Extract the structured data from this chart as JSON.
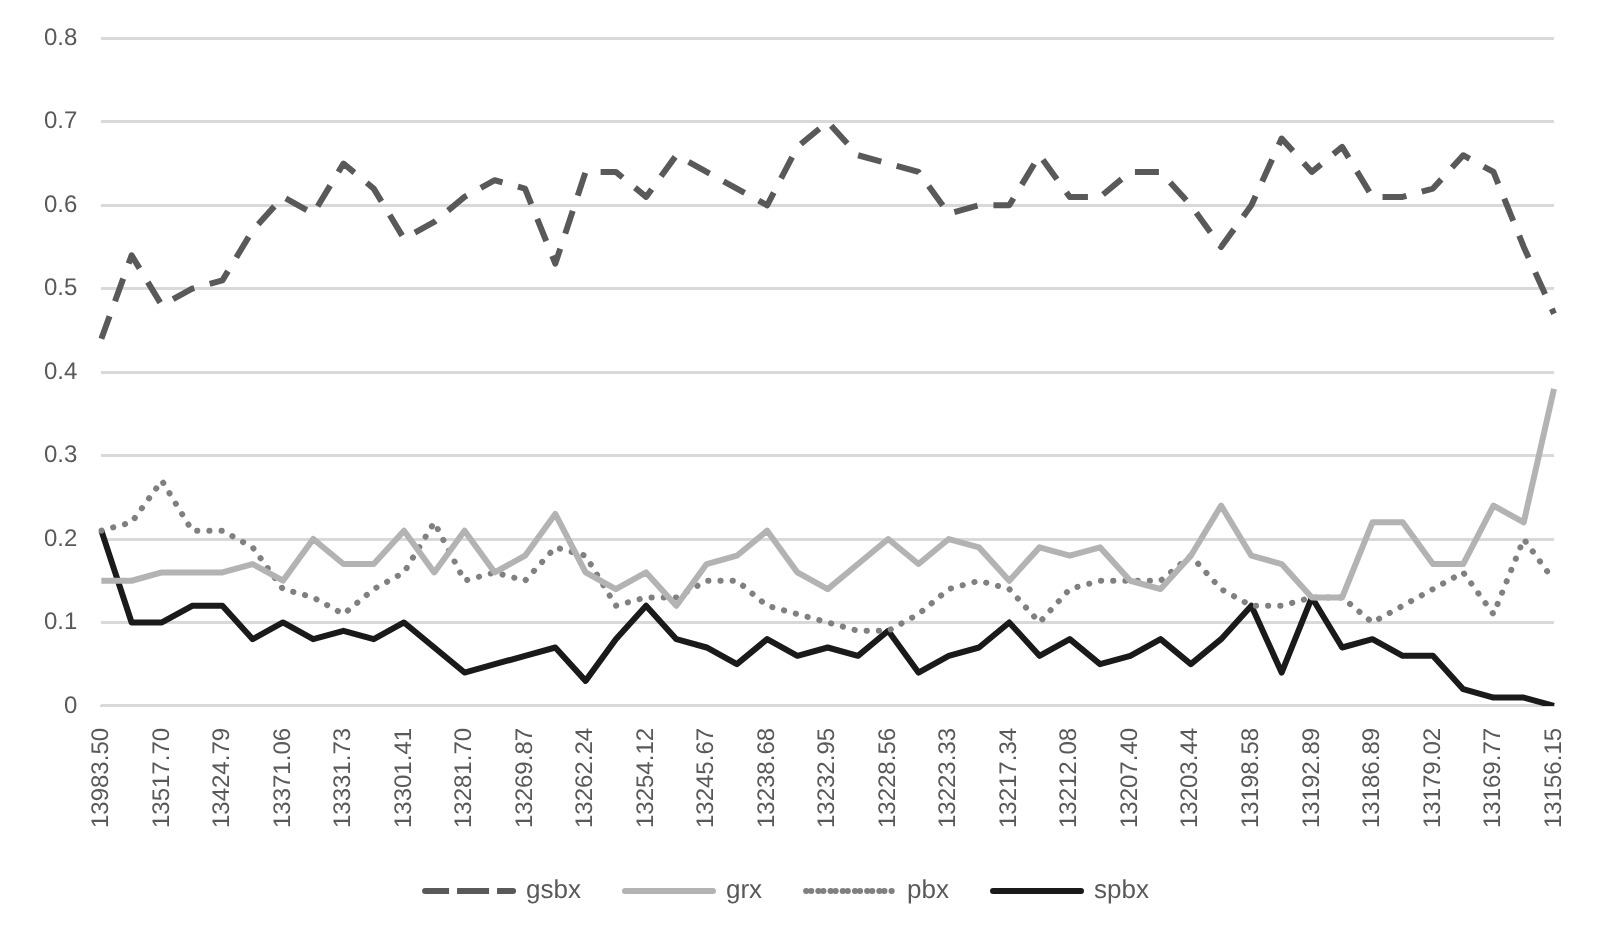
{
  "chart_data": {
    "type": "line",
    "categories": [
      "13983.50",
      null,
      "13517.70",
      null,
      "13424.79",
      null,
      "13371.06",
      null,
      "13331.73",
      null,
      "13301.41",
      null,
      "13281.70",
      null,
      "13269.87",
      null,
      "13262.24",
      null,
      "13254.12",
      null,
      "13245.67",
      null,
      "13238.68",
      null,
      "13232.95",
      null,
      "13228.56",
      null,
      "13223.33",
      null,
      "13217.34",
      null,
      "13212.08",
      null,
      "13207.40",
      null,
      "13203.44",
      null,
      "13198.58",
      null,
      "13192.89",
      null,
      "13186.89",
      null,
      "13179.02",
      null,
      "13169.77",
      null,
      "13156.15"
    ],
    "series": [
      {
        "name": "gsbx",
        "color": "#595959",
        "line_style": "dashed",
        "values": [
          0.44,
          0.54,
          0.48,
          0.5,
          0.51,
          0.57,
          0.61,
          0.59,
          0.65,
          0.62,
          0.56,
          0.58,
          0.61,
          0.63,
          0.62,
          0.53,
          0.64,
          0.64,
          0.61,
          0.66,
          0.64,
          0.62,
          0.6,
          0.67,
          0.7,
          0.66,
          0.65,
          0.64,
          0.59,
          0.6,
          0.6,
          0.66,
          0.61,
          0.61,
          0.64,
          0.64,
          0.6,
          0.55,
          0.6,
          0.68,
          0.64,
          0.67,
          0.61,
          0.61,
          0.62,
          0.66,
          0.64,
          0.55,
          0.47
        ]
      },
      {
        "name": "grx",
        "color": "#b3b3b3",
        "line_style": "solid",
        "values": [
          0.15,
          0.15,
          0.16,
          0.16,
          0.16,
          0.17,
          0.15,
          0.2,
          0.17,
          0.17,
          0.21,
          0.16,
          0.21,
          0.16,
          0.18,
          0.23,
          0.16,
          0.14,
          0.16,
          0.12,
          0.17,
          0.18,
          0.21,
          0.16,
          0.14,
          0.17,
          0.2,
          0.17,
          0.2,
          0.19,
          0.15,
          0.19,
          0.18,
          0.19,
          0.15,
          0.14,
          0.18,
          0.24,
          0.18,
          0.17,
          0.13,
          0.13,
          0.22,
          0.22,
          0.17,
          0.17,
          0.24,
          0.22,
          0.38
        ]
      },
      {
        "name": "pbx",
        "color": "#808080",
        "line_style": "dotted",
        "values": [
          0.21,
          0.22,
          0.27,
          0.21,
          0.21,
          0.19,
          0.14,
          0.13,
          0.11,
          0.14,
          0.16,
          0.22,
          0.15,
          0.16,
          0.15,
          0.19,
          0.18,
          0.12,
          0.13,
          0.13,
          0.15,
          0.15,
          0.12,
          0.11,
          0.1,
          0.09,
          0.09,
          0.11,
          0.14,
          0.15,
          0.14,
          0.1,
          0.14,
          0.15,
          0.15,
          0.15,
          0.18,
          0.14,
          0.12,
          0.12,
          0.13,
          0.13,
          0.1,
          0.12,
          0.14,
          0.16,
          0.11,
          0.2,
          0.15
        ]
      },
      {
        "name": "spbx",
        "color": "#1a1a1a",
        "line_style": "solid",
        "values": [
          0.21,
          0.1,
          0.1,
          0.12,
          0.12,
          0.08,
          0.1,
          0.08,
          0.09,
          0.08,
          0.1,
          0.07,
          0.04,
          0.05,
          0.06,
          0.07,
          0.03,
          0.08,
          0.12,
          0.08,
          0.07,
          0.05,
          0.08,
          0.06,
          0.07,
          0.06,
          0.09,
          0.04,
          0.06,
          0.07,
          0.1,
          0.06,
          0.08,
          0.05,
          0.06,
          0.08,
          0.05,
          0.08,
          0.12,
          0.04,
          0.13,
          0.07,
          0.08,
          0.06,
          0.06,
          0.02,
          0.01,
          0.01,
          0.0
        ]
      }
    ],
    "ylim": [
      0,
      0.8
    ],
    "yticks": [
      0,
      0.1,
      0.2,
      0.3,
      0.4,
      0.5,
      0.6,
      0.7,
      0.8
    ],
    "grid": "y",
    "legend": "bottom",
    "marker": "none"
  }
}
